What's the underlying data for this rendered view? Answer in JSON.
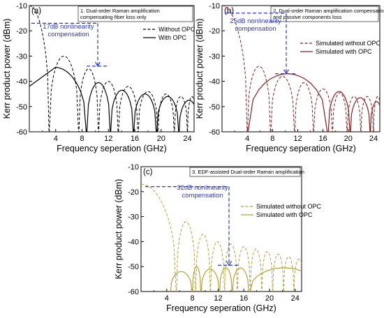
{
  "colors": {
    "panel_a": "#000000",
    "panel_b": "#8b1c1c",
    "panel_c": "#b8a032",
    "annotation": "#2b35d6"
  },
  "chart_data": [
    {
      "type": "line",
      "panel": "(a)",
      "note": "1. Dual-order Raman amplification compensating fiber loss only",
      "xlabel": "Frequency seperation (GHz)",
      "ylabel": "Kerr product power (dBm)",
      "xlim": [
        0,
        25
      ],
      "ylim": [
        -60,
        -10
      ],
      "xticks": [
        "4",
        "8",
        "12",
        "16",
        "20",
        "24"
      ],
      "yticks": [
        "-10",
        "-20",
        "-30",
        "-40",
        "-50",
        "-60"
      ],
      "legend_position": "top-right",
      "annotation": {
        "text": "17dB nonlinearity compensation",
        "y_top": -17,
        "y_bottom": -34
      },
      "series": [
        {
          "name": "Without OPC",
          "style": "dashed",
          "first_lobe_peak": -10,
          "nulls": [
            3.0,
            7.5,
            10.5,
            13.5,
            16.5,
            19.5,
            22.0,
            24.0
          ],
          "lobe_peaks": [
            -30,
            -35,
            -40,
            -42,
            -44,
            -45,
            -46
          ]
        },
        {
          "name": "With OPC",
          "style": "solid",
          "curve_start": -42,
          "nulls": [
            8.7,
            12.3,
            15.8,
            19.3,
            22.7
          ],
          "lobe_peaks": [
            -34.5,
            -40.5,
            -43.5,
            -45,
            -46,
            -47.5
          ]
        }
      ]
    },
    {
      "type": "line",
      "panel": "(b)",
      "note": "2. Dual-order Raman amplification compensating fiber and passive components loss",
      "xlabel": "Frequency seperation (GHz)",
      "ylabel": "Kerr product power (dBm)",
      "xlim": [
        0,
        25
      ],
      "ylim": [
        -60,
        -10
      ],
      "xticks": [
        "4",
        "8",
        "12",
        "16",
        "20",
        "24"
      ],
      "yticks": [
        "-10",
        "-20",
        "-30",
        "-40",
        "-50",
        "-60"
      ],
      "legend_position": "top-right",
      "annotation": {
        "text": "25dB nonlinearity compensation",
        "y_top": -13,
        "y_bottom": -37
      },
      "series": [
        {
          "name": "Simulated without OPC",
          "style": "dashed",
          "first_lobe_peak": -10,
          "nulls": [
            4.0,
            7.7,
            11.5,
            14.5,
            17.5,
            19.8,
            22.0,
            24.0
          ],
          "lobe_peaks": [
            -34,
            -38,
            -40.5,
            -43,
            -44.5,
            -46,
            -46
          ]
        },
        {
          "name": "Simulated with OPC",
          "style": "solid",
          "nulls": [
            4.0,
            16.8,
            20.3,
            23.5
          ],
          "lobe_peaks": [
            -37,
            -44,
            -46.5,
            -48
          ]
        }
      ]
    },
    {
      "type": "line",
      "panel": "(c)",
      "note": "3. EDF-assisted Dual-order Raman amplification",
      "xlabel": "Frequency seperation (GHz)",
      "ylabel": "Kerr product power (dBm)",
      "xlim": [
        0,
        25
      ],
      "ylim": [
        -60,
        -10
      ],
      "xticks": [
        "4",
        "8",
        "12",
        "16",
        "20",
        "24"
      ],
      "yticks": [
        "-10",
        "-20",
        "-30",
        "-40",
        "-50",
        "-60"
      ],
      "legend_position": "middle-right",
      "annotation": {
        "text": "32dB nonlinearity compensation",
        "y_top": -18,
        "y_bottom": -49.5
      },
      "series": [
        {
          "name": "Simulated without OPC",
          "style": "dashed",
          "first_lobe_peak": -17,
          "nulls": [
            5.5,
            8.5,
            10.8,
            13.0,
            15.0,
            17.0,
            18.8,
            20.5,
            22.2,
            23.8
          ],
          "lobe_peaks": [
            -32,
            -37,
            -40,
            -41,
            -42,
            -43,
            -44,
            -45,
            -46,
            -47
          ]
        },
        {
          "name": "Simulated with OPC",
          "style": "solid",
          "nulls": [
            4.5,
            8.0,
            9.3,
            12.2,
            14.2,
            16.8
          ],
          "lobe_peaks": [
            -52,
            -50,
            -51,
            -50.5
          ]
        }
      ]
    }
  ]
}
